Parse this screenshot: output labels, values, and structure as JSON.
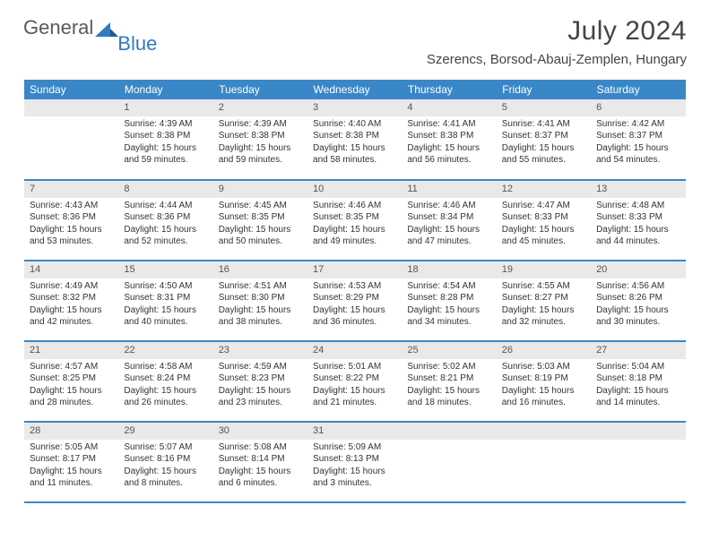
{
  "brand": {
    "part1": "General",
    "part2": "Blue"
  },
  "title": "July 2024",
  "location": "Szerencs, Borsod-Abauj-Zemplen, Hungary",
  "columns": [
    "Sunday",
    "Monday",
    "Tuesday",
    "Wednesday",
    "Thursday",
    "Friday",
    "Saturday"
  ],
  "colors": {
    "header_bg": "#3a87c7",
    "header_text": "#ffffff",
    "daynum_bg": "#e9e9e9",
    "row_border": "#3a87c7",
    "text": "#333333",
    "brand_gray": "#5a5a5a",
    "brand_blue": "#2e7cc1"
  },
  "weeks": [
    [
      {
        "n": "",
        "lines": []
      },
      {
        "n": "1",
        "lines": [
          "Sunrise: 4:39 AM",
          "Sunset: 8:38 PM",
          "Daylight: 15 hours",
          "and 59 minutes."
        ]
      },
      {
        "n": "2",
        "lines": [
          "Sunrise: 4:39 AM",
          "Sunset: 8:38 PM",
          "Daylight: 15 hours",
          "and 59 minutes."
        ]
      },
      {
        "n": "3",
        "lines": [
          "Sunrise: 4:40 AM",
          "Sunset: 8:38 PM",
          "Daylight: 15 hours",
          "and 58 minutes."
        ]
      },
      {
        "n": "4",
        "lines": [
          "Sunrise: 4:41 AM",
          "Sunset: 8:38 PM",
          "Daylight: 15 hours",
          "and 56 minutes."
        ]
      },
      {
        "n": "5",
        "lines": [
          "Sunrise: 4:41 AM",
          "Sunset: 8:37 PM",
          "Daylight: 15 hours",
          "and 55 minutes."
        ]
      },
      {
        "n": "6",
        "lines": [
          "Sunrise: 4:42 AM",
          "Sunset: 8:37 PM",
          "Daylight: 15 hours",
          "and 54 minutes."
        ]
      }
    ],
    [
      {
        "n": "7",
        "lines": [
          "Sunrise: 4:43 AM",
          "Sunset: 8:36 PM",
          "Daylight: 15 hours",
          "and 53 minutes."
        ]
      },
      {
        "n": "8",
        "lines": [
          "Sunrise: 4:44 AM",
          "Sunset: 8:36 PM",
          "Daylight: 15 hours",
          "and 52 minutes."
        ]
      },
      {
        "n": "9",
        "lines": [
          "Sunrise: 4:45 AM",
          "Sunset: 8:35 PM",
          "Daylight: 15 hours",
          "and 50 minutes."
        ]
      },
      {
        "n": "10",
        "lines": [
          "Sunrise: 4:46 AM",
          "Sunset: 8:35 PM",
          "Daylight: 15 hours",
          "and 49 minutes."
        ]
      },
      {
        "n": "11",
        "lines": [
          "Sunrise: 4:46 AM",
          "Sunset: 8:34 PM",
          "Daylight: 15 hours",
          "and 47 minutes."
        ]
      },
      {
        "n": "12",
        "lines": [
          "Sunrise: 4:47 AM",
          "Sunset: 8:33 PM",
          "Daylight: 15 hours",
          "and 45 minutes."
        ]
      },
      {
        "n": "13",
        "lines": [
          "Sunrise: 4:48 AM",
          "Sunset: 8:33 PM",
          "Daylight: 15 hours",
          "and 44 minutes."
        ]
      }
    ],
    [
      {
        "n": "14",
        "lines": [
          "Sunrise: 4:49 AM",
          "Sunset: 8:32 PM",
          "Daylight: 15 hours",
          "and 42 minutes."
        ]
      },
      {
        "n": "15",
        "lines": [
          "Sunrise: 4:50 AM",
          "Sunset: 8:31 PM",
          "Daylight: 15 hours",
          "and 40 minutes."
        ]
      },
      {
        "n": "16",
        "lines": [
          "Sunrise: 4:51 AM",
          "Sunset: 8:30 PM",
          "Daylight: 15 hours",
          "and 38 minutes."
        ]
      },
      {
        "n": "17",
        "lines": [
          "Sunrise: 4:53 AM",
          "Sunset: 8:29 PM",
          "Daylight: 15 hours",
          "and 36 minutes."
        ]
      },
      {
        "n": "18",
        "lines": [
          "Sunrise: 4:54 AM",
          "Sunset: 8:28 PM",
          "Daylight: 15 hours",
          "and 34 minutes."
        ]
      },
      {
        "n": "19",
        "lines": [
          "Sunrise: 4:55 AM",
          "Sunset: 8:27 PM",
          "Daylight: 15 hours",
          "and 32 minutes."
        ]
      },
      {
        "n": "20",
        "lines": [
          "Sunrise: 4:56 AM",
          "Sunset: 8:26 PM",
          "Daylight: 15 hours",
          "and 30 minutes."
        ]
      }
    ],
    [
      {
        "n": "21",
        "lines": [
          "Sunrise: 4:57 AM",
          "Sunset: 8:25 PM",
          "Daylight: 15 hours",
          "and 28 minutes."
        ]
      },
      {
        "n": "22",
        "lines": [
          "Sunrise: 4:58 AM",
          "Sunset: 8:24 PM",
          "Daylight: 15 hours",
          "and 26 minutes."
        ]
      },
      {
        "n": "23",
        "lines": [
          "Sunrise: 4:59 AM",
          "Sunset: 8:23 PM",
          "Daylight: 15 hours",
          "and 23 minutes."
        ]
      },
      {
        "n": "24",
        "lines": [
          "Sunrise: 5:01 AM",
          "Sunset: 8:22 PM",
          "Daylight: 15 hours",
          "and 21 minutes."
        ]
      },
      {
        "n": "25",
        "lines": [
          "Sunrise: 5:02 AM",
          "Sunset: 8:21 PM",
          "Daylight: 15 hours",
          "and 18 minutes."
        ]
      },
      {
        "n": "26",
        "lines": [
          "Sunrise: 5:03 AM",
          "Sunset: 8:19 PM",
          "Daylight: 15 hours",
          "and 16 minutes."
        ]
      },
      {
        "n": "27",
        "lines": [
          "Sunrise: 5:04 AM",
          "Sunset: 8:18 PM",
          "Daylight: 15 hours",
          "and 14 minutes."
        ]
      }
    ],
    [
      {
        "n": "28",
        "lines": [
          "Sunrise: 5:05 AM",
          "Sunset: 8:17 PM",
          "Daylight: 15 hours",
          "and 11 minutes."
        ]
      },
      {
        "n": "29",
        "lines": [
          "Sunrise: 5:07 AM",
          "Sunset: 8:16 PM",
          "Daylight: 15 hours",
          "and 8 minutes."
        ]
      },
      {
        "n": "30",
        "lines": [
          "Sunrise: 5:08 AM",
          "Sunset: 8:14 PM",
          "Daylight: 15 hours",
          "and 6 minutes."
        ]
      },
      {
        "n": "31",
        "lines": [
          "Sunrise: 5:09 AM",
          "Sunset: 8:13 PM",
          "Daylight: 15 hours",
          "and 3 minutes."
        ]
      },
      {
        "n": "",
        "lines": []
      },
      {
        "n": "",
        "lines": []
      },
      {
        "n": "",
        "lines": []
      }
    ]
  ]
}
